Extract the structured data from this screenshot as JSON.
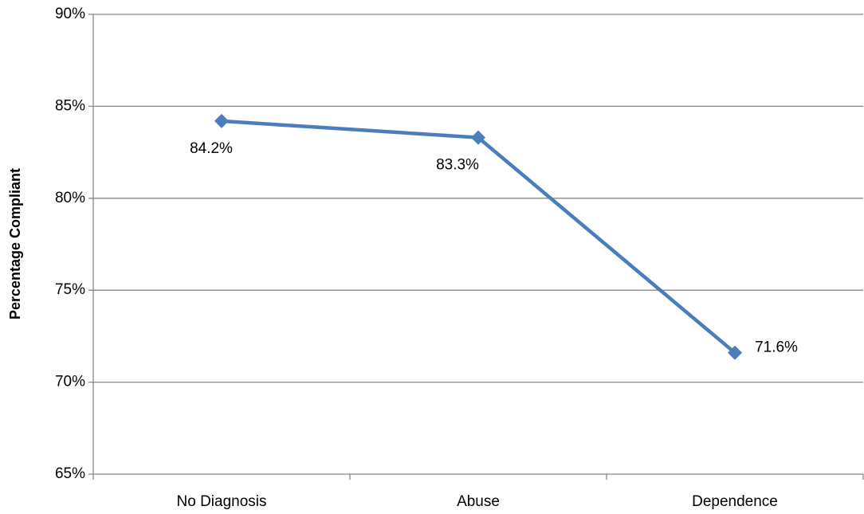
{
  "chart_data": {
    "type": "line",
    "y_label": "Percentage Compliant",
    "categories": [
      "No Diagnosis",
      "Abuse",
      "Dependence"
    ],
    "series": [
      {
        "color": "#4a7ebb",
        "values": [
          84.2,
          83.3,
          71.6
        ],
        "value_labels": [
          "84.2%",
          "83.3%",
          "71.6%"
        ]
      }
    ],
    "ylim": [
      65,
      90
    ],
    "yticks": [
      {
        "value": 65,
        "label": "65%"
      },
      {
        "value": 70,
        "label": "70%"
      },
      {
        "value": 75,
        "label": "75%"
      },
      {
        "value": 80,
        "label": "80%"
      },
      {
        "value": 85,
        "label": "85%"
      },
      {
        "value": 90,
        "label": "90%"
      }
    ],
    "grid": true
  }
}
